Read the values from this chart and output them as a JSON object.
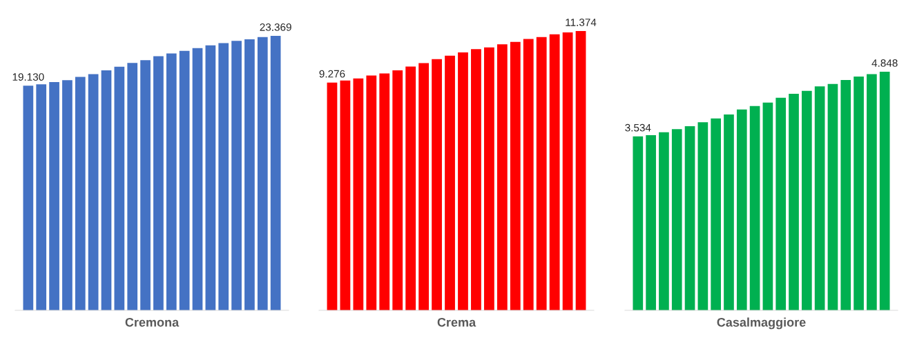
{
  "chart_data": [
    {
      "type": "bar",
      "xlabel": "Cremona",
      "categories": [
        null,
        null,
        null,
        null,
        null,
        null,
        null,
        null,
        null,
        null,
        null,
        null,
        null,
        null,
        null,
        null,
        null,
        null,
        null,
        null
      ],
      "color": "#4472c4",
      "values": [
        19130,
        19250,
        19440,
        19600,
        19870,
        20110,
        20440,
        20740,
        21070,
        21300,
        21640,
        21870,
        22090,
        22320,
        22560,
        22750,
        22950,
        23080,
        23260,
        23369
      ],
      "value_labels": [
        "19.130",
        null,
        null,
        null,
        null,
        null,
        null,
        null,
        null,
        null,
        null,
        null,
        null,
        null,
        null,
        null,
        null,
        null,
        null,
        "23.369"
      ],
      "tick_labels": false,
      "grid": false,
      "legend": false
    },
    {
      "type": "bar",
      "xlabel": "Crema",
      "categories": [
        null,
        null,
        null,
        null,
        null,
        null,
        null,
        null,
        null,
        null,
        null,
        null,
        null,
        null,
        null,
        null,
        null,
        null,
        null,
        null
      ],
      "color": "#ff0000",
      "values": [
        9276,
        9360,
        9440,
        9560,
        9650,
        9770,
        9930,
        10070,
        10230,
        10370,
        10500,
        10640,
        10710,
        10830,
        10930,
        11050,
        11130,
        11240,
        11320,
        11374
      ],
      "value_labels": [
        "9.276",
        null,
        null,
        null,
        null,
        null,
        null,
        null,
        null,
        null,
        null,
        null,
        null,
        null,
        null,
        null,
        null,
        null,
        null,
        "11.374"
      ],
      "tick_labels": false,
      "grid": false,
      "legend": false
    },
    {
      "type": "bar",
      "xlabel": "Casalmaggiore",
      "categories": [
        null,
        null,
        null,
        null,
        null,
        null,
        null,
        null,
        null,
        null,
        null,
        null,
        null,
        null,
        null,
        null,
        null,
        null,
        null,
        null
      ],
      "color": "#00b050",
      "values": [
        3534,
        3560,
        3620,
        3680,
        3740,
        3820,
        3900,
        3980,
        4080,
        4150,
        4220,
        4320,
        4400,
        4460,
        4550,
        4600,
        4680,
        4750,
        4800,
        4848
      ],
      "value_labels": [
        "3.534",
        null,
        null,
        null,
        null,
        null,
        null,
        null,
        null,
        null,
        null,
        null,
        null,
        null,
        null,
        null,
        null,
        null,
        null,
        "4.848"
      ],
      "tick_labels": false,
      "grid": false,
      "legend": false
    }
  ]
}
